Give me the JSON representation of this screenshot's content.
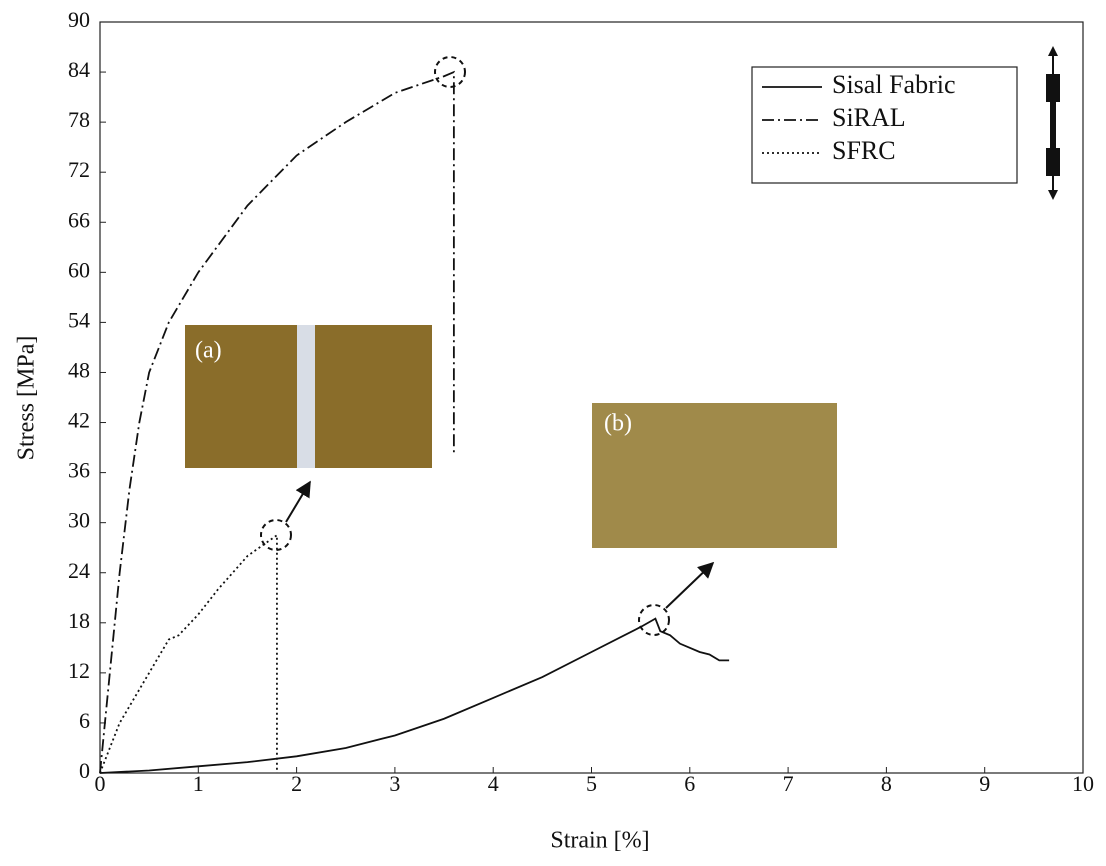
{
  "chart_data": {
    "type": "line",
    "x_label": "Strain [%]",
    "y_label": "Stress [MPa]",
    "xlim": [
      0,
      10
    ],
    "xticks": [
      0,
      1,
      2,
      3,
      4,
      5,
      6,
      7,
      8,
      9,
      10
    ],
    "ylim": [
      0,
      90
    ],
    "yticks": [
      0,
      6,
      12,
      18,
      24,
      30,
      36,
      42,
      48,
      54,
      60,
      66,
      72,
      78,
      84,
      90
    ],
    "grid": false,
    "legend": "upper right",
    "annotations": [
      "(a)",
      "(b)"
    ],
    "series": [
      {
        "name": "Sisal Fabric",
        "color": "#111111",
        "dash": "solid",
        "x": [
          0,
          0.5,
          1,
          1.5,
          2,
          2.5,
          3,
          3.5,
          4,
          4.5,
          5,
          5.5,
          5.65,
          5.7,
          5.8,
          5.9,
          6.0,
          6.1,
          6.2,
          6.3,
          6.4
        ],
        "values": [
          0,
          0.3,
          0.8,
          1.3,
          2,
          3,
          4.5,
          6.5,
          9,
          11.5,
          14.5,
          17.5,
          18.5,
          17,
          16.5,
          15.5,
          15,
          14.5,
          14.2,
          13.5,
          13.5
        ]
      },
      {
        "name": "SiRAL",
        "color": "#111111",
        "dash": "dashdot",
        "x": [
          0,
          0.1,
          0.2,
          0.3,
          0.4,
          0.5,
          0.7,
          1,
          1.5,
          2,
          2.5,
          3,
          3.5,
          3.6,
          3.6
        ],
        "values": [
          0,
          12,
          24,
          34,
          42,
          48,
          54,
          60,
          68,
          74,
          78,
          81.5,
          83.5,
          84,
          38
        ]
      },
      {
        "name": "SFRC",
        "color": "#111111",
        "dash": "dotted",
        "x": [
          0,
          0.2,
          0.4,
          0.6,
          0.7,
          0.8,
          1,
          1.2,
          1.5,
          1.8,
          1.8
        ],
        "values": [
          0,
          6,
          10,
          14,
          16,
          16.5,
          19,
          22,
          26,
          28.5,
          0
        ]
      }
    ]
  }
}
